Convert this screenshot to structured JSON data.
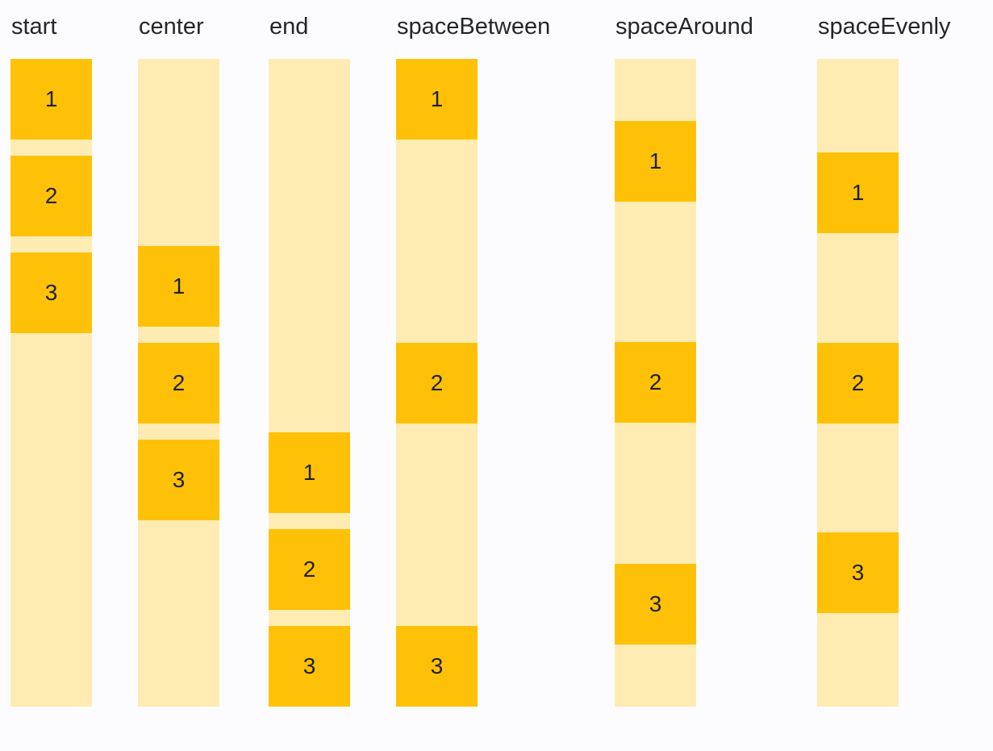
{
  "demo": {
    "groups": [
      {
        "label": "start",
        "justify": "flex-start",
        "items": [
          "1",
          "2",
          "3"
        ]
      },
      {
        "label": "center",
        "justify": "center",
        "items": [
          "1",
          "2",
          "3"
        ]
      },
      {
        "label": "end",
        "justify": "flex-end",
        "items": [
          "1",
          "2",
          "3"
        ]
      },
      {
        "label": "spaceBetween",
        "justify": "space-between",
        "items": [
          "1",
          "2",
          "3"
        ]
      },
      {
        "label": "spaceAround",
        "justify": "space-around",
        "items": [
          "1",
          "2",
          "3"
        ]
      },
      {
        "label": "spaceEvenly",
        "justify": "space-evenly",
        "items": [
          "1",
          "2",
          "3"
        ]
      }
    ],
    "colors": {
      "item": "#FFC107",
      "track": "#FFECB3",
      "label_text": "#24262B",
      "background": "#FCFCFE"
    }
  }
}
